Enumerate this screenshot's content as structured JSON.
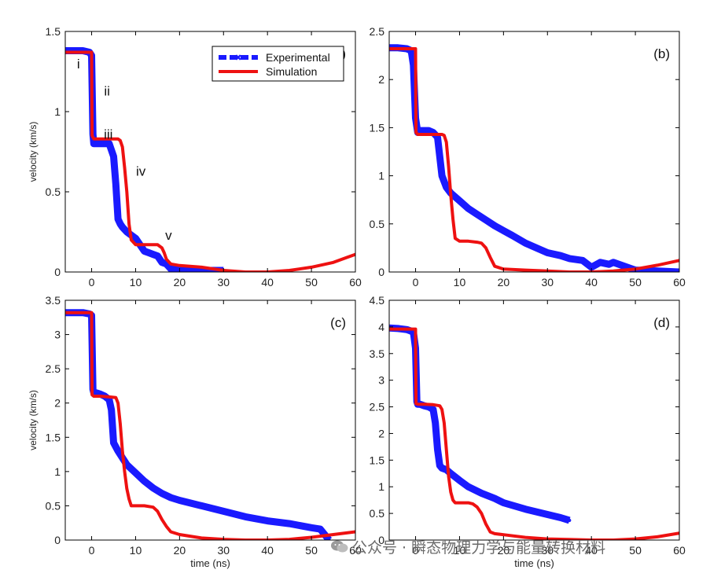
{
  "figure": {
    "xlabel": "time (ns)",
    "ylabel": "velocity (km/s)",
    "watermark": "公众号 · 瞬态物理力学与能量转换材料",
    "colors": {
      "experimental": "#1a1aff",
      "simulation": "#ee1111",
      "axis": "#000000"
    }
  },
  "chart_data": [
    {
      "type": "line",
      "panel_label": "(a)",
      "xlim": [
        -6,
        60
      ],
      "ylim": [
        0,
        1.5
      ],
      "xticks": [
        0,
        10,
        20,
        30,
        40,
        50,
        60
      ],
      "yticks": [
        0,
        0.5,
        1,
        1.5
      ],
      "show_xlabel": false,
      "show_ylabel": true,
      "legend": {
        "placement": "top-right",
        "entries": [
          "Experimental",
          "Simulation"
        ]
      },
      "annotations": [
        {
          "text": "i",
          "x": -3,
          "y": 1.27
        },
        {
          "text": "ii",
          "x": 3.5,
          "y": 1.1
        },
        {
          "text": "iii",
          "x": 3.8,
          "y": 0.83
        },
        {
          "text": "iv",
          "x": 11.2,
          "y": 0.6
        },
        {
          "text": "v",
          "x": 17.5,
          "y": 0.2
        }
      ],
      "series": [
        {
          "name": "Experimental",
          "x": [
            -6,
            -4,
            -2,
            -0.5,
            0,
            0.3,
            0.5,
            1,
            2,
            3,
            4,
            5,
            5.5,
            6,
            6.5,
            7,
            8,
            9,
            10,
            11,
            12,
            13,
            14,
            15,
            16,
            17,
            18,
            20,
            22,
            25,
            28,
            30
          ],
          "y": [
            1.38,
            1.38,
            1.38,
            1.37,
            1.35,
            0.86,
            0.8,
            0.8,
            0.8,
            0.8,
            0.8,
            0.72,
            0.55,
            0.33,
            0.3,
            0.28,
            0.25,
            0.23,
            0.21,
            0.17,
            0.13,
            0.12,
            0.11,
            0.1,
            0.06,
            0.05,
            0.02,
            0.02,
            0.01,
            0.01,
            0.01,
            0.01
          ]
        },
        {
          "name": "Simulation",
          "x": [
            -6,
            -1,
            0,
            0.1,
            0.5,
            1,
            2,
            4,
            6,
            6.5,
            7,
            7.5,
            8,
            8.5,
            9,
            10,
            12,
            14,
            15,
            16,
            16.5,
            17,
            18,
            20,
            25,
            30,
            35,
            40,
            45,
            50,
            55,
            58,
            60
          ],
          "y": [
            1.37,
            1.37,
            1.37,
            0.85,
            0.83,
            0.83,
            0.83,
            0.83,
            0.83,
            0.82,
            0.78,
            0.65,
            0.5,
            0.3,
            0.2,
            0.17,
            0.17,
            0.17,
            0.17,
            0.15,
            0.12,
            0.08,
            0.05,
            0.04,
            0.03,
            0.01,
            0.0,
            0.0,
            0.01,
            0.03,
            0.06,
            0.09,
            0.11
          ]
        }
      ]
    },
    {
      "type": "line",
      "panel_label": "(b)",
      "xlim": [
        -6,
        60
      ],
      "ylim": [
        0,
        2.5
      ],
      "xticks": [
        0,
        10,
        20,
        30,
        40,
        50,
        60
      ],
      "yticks": [
        0,
        0.5,
        1,
        1.5,
        2,
        2.5
      ],
      "show_xlabel": false,
      "show_ylabel": false,
      "series": [
        {
          "name": "Experimental",
          "x": [
            -6,
            -4,
            -2,
            -1,
            -0.5,
            0,
            0.5,
            1,
            2,
            3,
            4,
            5,
            5.5,
            6,
            7,
            8,
            9,
            10,
            12,
            14,
            16,
            18,
            20,
            22,
            25,
            28,
            30,
            33,
            35,
            38,
            40,
            42,
            44,
            45,
            50,
            55,
            60
          ],
          "y": [
            2.33,
            2.33,
            2.32,
            2.3,
            2.15,
            1.6,
            1.45,
            1.47,
            1.47,
            1.47,
            1.45,
            1.4,
            1.2,
            1.0,
            0.88,
            0.82,
            0.78,
            0.74,
            0.66,
            0.6,
            0.54,
            0.48,
            0.43,
            0.38,
            0.3,
            0.24,
            0.2,
            0.17,
            0.14,
            0.12,
            0.05,
            0.1,
            0.08,
            0.1,
            0.02,
            0.01,
            0.0
          ]
        },
        {
          "name": "Simulation",
          "x": [
            -6,
            -1,
            0,
            0.1,
            0.5,
            2,
            4,
            6,
            6.5,
            7,
            7.5,
            8,
            8.5,
            9,
            10,
            12,
            14,
            15,
            16,
            17,
            18,
            20,
            25,
            30,
            35,
            40,
            45,
            50,
            55,
            60
          ],
          "y": [
            2.32,
            2.32,
            2.32,
            1.45,
            1.43,
            1.43,
            1.43,
            1.43,
            1.42,
            1.35,
            1.1,
            0.8,
            0.55,
            0.35,
            0.32,
            0.32,
            0.31,
            0.3,
            0.25,
            0.15,
            0.06,
            0.03,
            0.02,
            0.01,
            0.0,
            0.0,
            0.01,
            0.03,
            0.07,
            0.12
          ]
        }
      ]
    },
    {
      "type": "line",
      "panel_label": "(c)",
      "xlim": [
        -6,
        60
      ],
      "ylim": [
        0,
        3.5
      ],
      "xticks": [
        0,
        10,
        20,
        30,
        40,
        50,
        60
      ],
      "yticks": [
        0,
        0.5,
        1,
        1.5,
        2,
        2.5,
        3,
        3.5
      ],
      "show_xlabel": true,
      "show_ylabel": true,
      "series": [
        {
          "name": "Experimental",
          "x": [
            -6,
            -4,
            -2,
            -0.5,
            0,
            0.3,
            0.5,
            1,
            2,
            3,
            4,
            4.5,
            5,
            6,
            7,
            8,
            10,
            12,
            14,
            16,
            18,
            20,
            25,
            30,
            35,
            40,
            45,
            50,
            52,
            53,
            54
          ],
          "y": [
            3.32,
            3.32,
            3.32,
            3.3,
            3.28,
            2.2,
            2.15,
            2.15,
            2.13,
            2.1,
            2.05,
            1.9,
            1.42,
            1.3,
            1.2,
            1.1,
            0.98,
            0.86,
            0.76,
            0.68,
            0.62,
            0.58,
            0.5,
            0.42,
            0.34,
            0.28,
            0.24,
            0.18,
            0.16,
            0.08,
            0.0
          ]
        },
        {
          "name": "Simulation",
          "x": [
            -6,
            -1,
            0,
            0.1,
            0.5,
            2,
            4,
            5.5,
            6,
            6.5,
            7,
            7.5,
            8,
            8.5,
            9,
            10,
            12,
            14,
            15,
            16,
            17,
            18,
            20,
            25,
            30,
            35,
            40,
            45,
            50,
            55,
            60
          ],
          "y": [
            3.32,
            3.32,
            3.32,
            2.12,
            2.1,
            2.1,
            2.09,
            2.08,
            2.0,
            1.7,
            1.3,
            1.0,
            0.75,
            0.6,
            0.5,
            0.5,
            0.5,
            0.48,
            0.42,
            0.3,
            0.2,
            0.12,
            0.08,
            0.03,
            0.01,
            0.0,
            0.0,
            0.01,
            0.04,
            0.08,
            0.12
          ]
        }
      ]
    },
    {
      "type": "line",
      "panel_label": "(d)",
      "xlim": [
        -6,
        60
      ],
      "ylim": [
        0,
        4.5
      ],
      "xticks": [
        0,
        10,
        20,
        30,
        40,
        50,
        60
      ],
      "yticks": [
        0,
        0.5,
        1,
        1.5,
        2,
        2.5,
        3,
        3.5,
        4,
        4.5
      ],
      "show_xlabel": true,
      "show_ylabel": false,
      "series": [
        {
          "name": "Experimental",
          "x": [
            -6,
            -4,
            -2,
            -1,
            -0.5,
            0,
            0.3,
            0.5,
            1,
            2,
            3,
            4,
            4.5,
            5,
            5.5,
            6,
            7,
            8,
            10,
            12,
            15,
            18,
            20,
            25,
            30,
            33,
            35
          ],
          "y": [
            3.98,
            3.97,
            3.95,
            3.92,
            3.9,
            3.6,
            2.6,
            2.55,
            2.55,
            2.52,
            2.5,
            2.45,
            2.2,
            1.7,
            1.4,
            1.35,
            1.32,
            1.25,
            1.12,
            1.0,
            0.88,
            0.78,
            0.7,
            0.58,
            0.48,
            0.42,
            0.37
          ]
        },
        {
          "name": "Simulation",
          "x": [
            -6,
            -1,
            0,
            0.1,
            0.5,
            2,
            4,
            5.5,
            6,
            6.5,
            7,
            7.5,
            8,
            8.5,
            9,
            10,
            12,
            13,
            14,
            15,
            16,
            17,
            18,
            20,
            25,
            30,
            35,
            40,
            45,
            50,
            55,
            60
          ],
          "y": [
            3.96,
            3.96,
            3.96,
            2.56,
            2.55,
            2.55,
            2.54,
            2.52,
            2.45,
            2.2,
            1.7,
            1.2,
            0.9,
            0.75,
            0.7,
            0.7,
            0.7,
            0.68,
            0.62,
            0.5,
            0.3,
            0.15,
            0.12,
            0.1,
            0.05,
            0.02,
            0.01,
            0.0,
            0.0,
            0.02,
            0.06,
            0.13
          ]
        }
      ]
    }
  ]
}
